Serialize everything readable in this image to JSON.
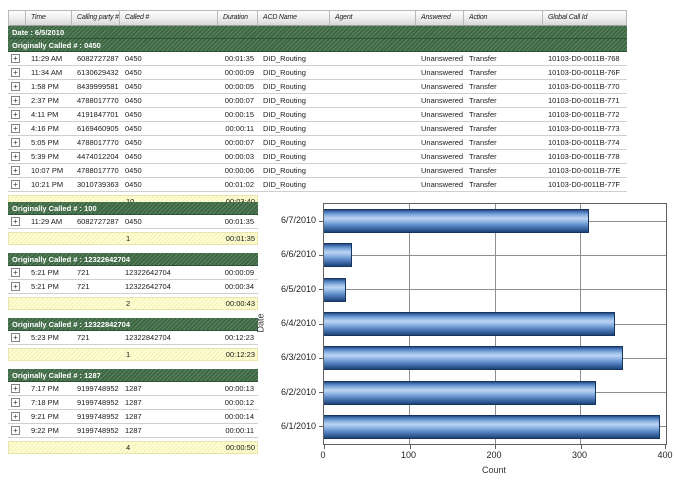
{
  "colors": {
    "group_header_green": "#3e6a44",
    "summary_yellow": "#ffffd2",
    "bar_blue": "#4f7fc1",
    "grid_gray": "#8f8f8f"
  },
  "table": {
    "columns": [
      "",
      "Time",
      "Calling party #",
      "Called #",
      "Duration",
      "ACD Name",
      "Agent",
      "Answered",
      "Action",
      "Global Call Id"
    ],
    "date_header": "Date : 6/5/2010",
    "group_header": "Originally Called # : 0450",
    "rows": [
      {
        "time": "11:29 AM",
        "calling": "6082727287",
        "called": "0450",
        "duration": "00:01:35",
        "acd": "DID_Routing",
        "agent": "",
        "answered": "Unanswered",
        "action": "Transfer",
        "global_id": "10103-D0-0011B-768"
      },
      {
        "time": "11:34 AM",
        "calling": "6130629432",
        "called": "0450",
        "duration": "00:00:09",
        "acd": "DID_Routing",
        "agent": "",
        "answered": "Unanswered",
        "action": "Transfer",
        "global_id": "10103-D0-0011B-76F"
      },
      {
        "time": "1:58 PM",
        "calling": "8439999581",
        "called": "0450",
        "duration": "00:00:05",
        "acd": "DID_Routing",
        "agent": "",
        "answered": "Unanswered",
        "action": "Transfer",
        "global_id": "10103-D0-0011B-770"
      },
      {
        "time": "2:37 PM",
        "calling": "4788017770",
        "called": "0450",
        "duration": "00:00:07",
        "acd": "DID_Routing",
        "agent": "",
        "answered": "Unanswered",
        "action": "Transfer",
        "global_id": "10103-D0-0011B-771"
      },
      {
        "time": "4:11 PM",
        "calling": "4191847701",
        "called": "0450",
        "duration": "00:00:15",
        "acd": "DID_Routing",
        "agent": "",
        "answered": "Unanswered",
        "action": "Transfer",
        "global_id": "10103-D0-0011B-772"
      },
      {
        "time": "4:16 PM",
        "calling": "6169460905",
        "called": "0450",
        "duration": "00:00:11",
        "acd": "DID_Routing",
        "agent": "",
        "answered": "Unanswered",
        "action": "Transfer",
        "global_id": "10103-D0-0011B-773"
      },
      {
        "time": "5:05 PM",
        "calling": "4788017770",
        "called": "0450",
        "duration": "00:00:07",
        "acd": "DID_Routing",
        "agent": "",
        "answered": "Unanswered",
        "action": "Transfer",
        "global_id": "10103-D0-0011B-774"
      },
      {
        "time": "5:39 PM",
        "calling": "4474012204",
        "called": "0450",
        "duration": "00:00:03",
        "acd": "DID_Routing",
        "agent": "",
        "answered": "Unanswered",
        "action": "Transfer",
        "global_id": "10103-D0-0011B-778"
      },
      {
        "time": "10:07 PM",
        "calling": "4788017770",
        "called": "0450",
        "duration": "00:00:06",
        "acd": "DID_Routing",
        "agent": "",
        "answered": "Unanswered",
        "action": "Transfer",
        "global_id": "10103-D0-0011B-77E"
      },
      {
        "time": "10:21 PM",
        "calling": "3010739363",
        "called": "0450",
        "duration": "00:01:02",
        "acd": "DID_Routing",
        "agent": "",
        "answered": "Unanswered",
        "action": "Transfer",
        "global_id": "10103-D0-0011B-77F"
      }
    ],
    "summary": {
      "count": "10",
      "duration": "00:03:40"
    }
  },
  "sections": [
    {
      "header": "Originally Called # : 100",
      "rows": [
        {
          "time": "11:29 AM",
          "calling": "6082727287",
          "called": "0450",
          "duration": "00:01:35"
        }
      ],
      "summary": {
        "count": "1",
        "duration": "00:01:35"
      }
    },
    {
      "header": "Originally Called # : 12322642704",
      "rows": [
        {
          "time": "5:21 PM",
          "calling": "721",
          "called": "12322642704",
          "duration": "00:00:09"
        },
        {
          "time": "5:21 PM",
          "calling": "721",
          "called": "12322642704",
          "duration": "00:00:34"
        }
      ],
      "summary": {
        "count": "2",
        "duration": "00:00:43"
      }
    },
    {
      "header": "Originally Called # : 12322842704",
      "rows": [
        {
          "time": "5:23 PM",
          "calling": "721",
          "called": "12322842704",
          "duration": "00:12:23"
        }
      ],
      "summary": {
        "count": "1",
        "duration": "00:12:23"
      }
    },
    {
      "header": "Originally Called # : 1287",
      "rows": [
        {
          "time": "7:17 PM",
          "calling": "9199748952",
          "called": "1287",
          "duration": "00:00:13"
        },
        {
          "time": "7:18 PM",
          "calling": "9199748952",
          "called": "1287",
          "duration": "00:00:12"
        },
        {
          "time": "9:21 PM",
          "calling": "9199748952",
          "called": "1287",
          "duration": "00:00:14"
        },
        {
          "time": "9:22 PM",
          "calling": "9199748952",
          "called": "1287",
          "duration": "00:00:11"
        }
      ],
      "summary": {
        "count": "4",
        "duration": "00:00:50"
      }
    }
  ],
  "chart_data": {
    "type": "bar",
    "orientation": "horizontal",
    "categories": [
      "6/7/2010",
      "6/6/2010",
      "6/5/2010",
      "6/4/2010",
      "6/3/2010",
      "6/2/2010",
      "6/1/2010"
    ],
    "values": [
      310,
      33,
      26,
      340,
      350,
      318,
      393
    ],
    "title": "",
    "xlabel": "Count",
    "ylabel": "Date",
    "xlim": [
      0,
      400
    ],
    "xticks": [
      0,
      100,
      200,
      300,
      400
    ],
    "grid": true,
    "legend": false,
    "bar_color": "#4f7fc1"
  }
}
